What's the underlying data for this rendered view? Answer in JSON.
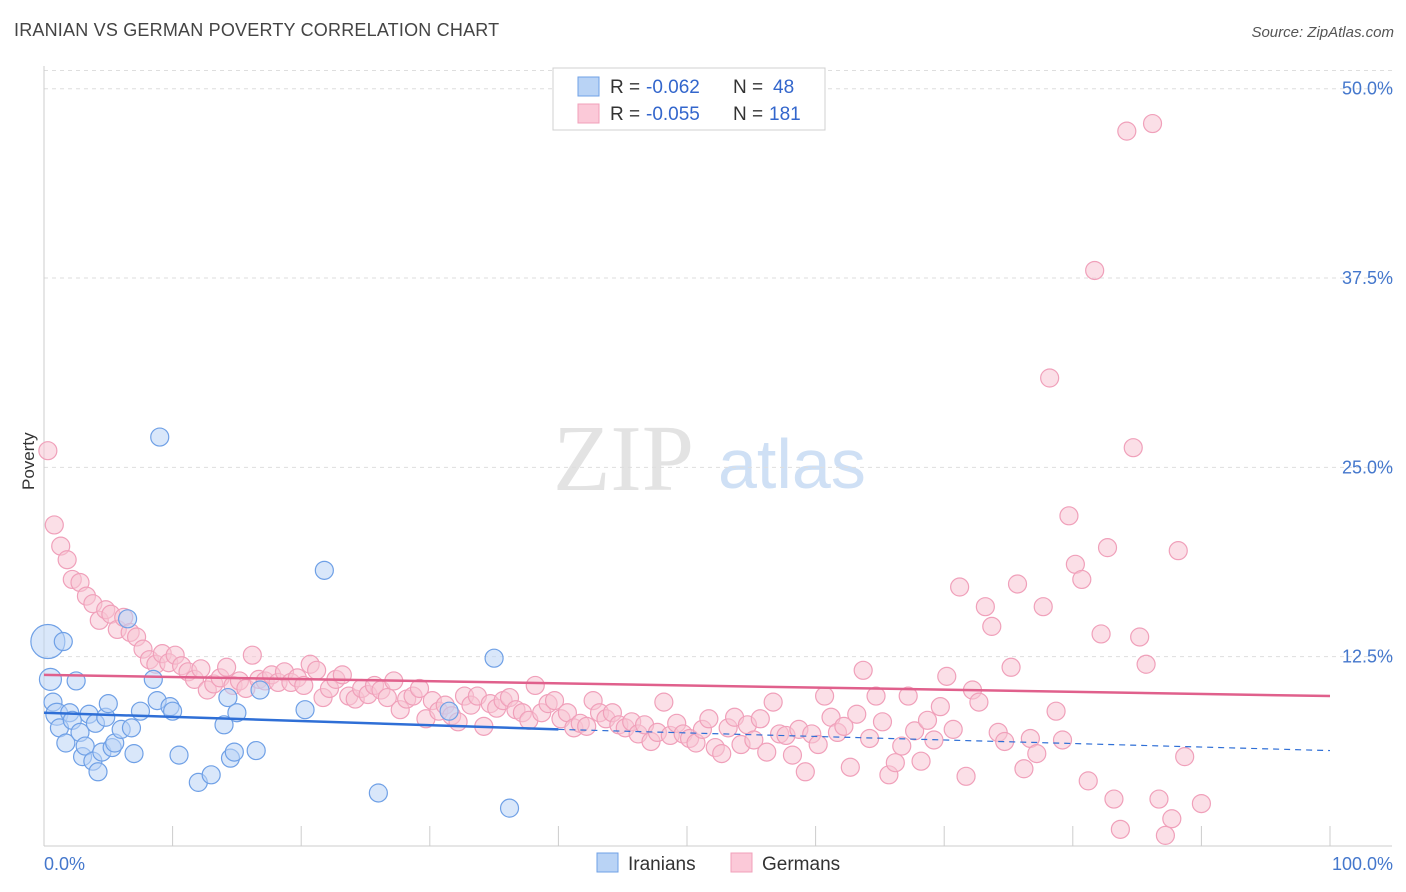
{
  "title": "IRANIAN VS GERMAN POVERTY CORRELATION CHART",
  "source": "Source: ZipAtlas.com",
  "watermark": {
    "zip": "ZIP",
    "atlas": "atlas"
  },
  "legend": {
    "rows": [
      {
        "r_label": "R =",
        "r_value": "-0.062",
        "n_label": "N =",
        "n_value": "48",
        "color": "#90b8ee"
      },
      {
        "r_label": "R =",
        "r_value": "-0.055",
        "n_label": "N =",
        "n_value": "181",
        "color": "#f4a6bf"
      }
    ]
  },
  "bottom_legend": [
    "Iranians",
    "Germans"
  ],
  "chart_data": {
    "type": "scatter",
    "xlabel": "",
    "ylabel": "Poverty",
    "xlim": [
      0,
      100
    ],
    "ylim": [
      0,
      51.5
    ],
    "x_tick_labels": [
      "0.0%",
      "100.0%"
    ],
    "y_ticks": [
      12.5,
      25.0,
      37.5,
      50.0
    ],
    "y_tick_labels": [
      "12.5%",
      "25.0%",
      "37.5%",
      "50.0%"
    ],
    "grid": "horizontal dashed",
    "legend_position": "top-center",
    "series": [
      {
        "name": "Iranians",
        "color": "#6fa0e6",
        "trend": {
          "x0": 0,
          "y0": 8.8,
          "x1": 40,
          "y1": 7.7,
          "dash_to_x": 100,
          "dash_to_y": 6.3,
          "color": "#2f6fd6"
        },
        "points": [
          [
            0.3,
            13.5
          ],
          [
            0.5,
            11.0
          ],
          [
            0.7,
            9.5
          ],
          [
            1.0,
            8.7
          ],
          [
            1.2,
            7.8
          ],
          [
            1.5,
            13.5
          ],
          [
            1.7,
            6.8
          ],
          [
            2.0,
            8.8
          ],
          [
            2.2,
            8.3
          ],
          [
            2.5,
            10.9
          ],
          [
            2.8,
            7.5
          ],
          [
            3.0,
            5.9
          ],
          [
            3.2,
            6.6
          ],
          [
            3.5,
            8.7
          ],
          [
            3.8,
            5.6
          ],
          [
            4.0,
            8.1
          ],
          [
            4.2,
            4.9
          ],
          [
            4.5,
            6.2
          ],
          [
            4.8,
            8.5
          ],
          [
            5.0,
            9.4
          ],
          [
            5.3,
            6.5
          ],
          [
            5.5,
            6.8
          ],
          [
            6.0,
            7.7
          ],
          [
            6.5,
            15.0
          ],
          [
            6.8,
            7.8
          ],
          [
            7.0,
            6.1
          ],
          [
            7.5,
            8.9
          ],
          [
            8.5,
            11.0
          ],
          [
            8.8,
            9.6
          ],
          [
            9.0,
            27.0
          ],
          [
            9.8,
            9.2
          ],
          [
            10.0,
            8.9
          ],
          [
            10.5,
            6.0
          ],
          [
            12.0,
            4.2
          ],
          [
            13.0,
            4.7
          ],
          [
            14.0,
            8.0
          ],
          [
            14.3,
            9.8
          ],
          [
            14.5,
            5.8
          ],
          [
            14.8,
            6.2
          ],
          [
            15.0,
            8.8
          ],
          [
            16.5,
            6.3
          ],
          [
            16.8,
            10.3
          ],
          [
            20.3,
            9.0
          ],
          [
            21.8,
            18.2
          ],
          [
            26.0,
            3.5
          ],
          [
            31.5,
            8.9
          ],
          [
            35.0,
            12.4
          ],
          [
            36.2,
            2.5
          ]
        ]
      },
      {
        "name": "Germans",
        "color": "#f0a0ba",
        "trend": {
          "x0": 0,
          "y0": 11.3,
          "x1": 100,
          "y1": 9.9,
          "color": "#e0608c"
        },
        "points": [
          [
            0.3,
            26.1
          ],
          [
            0.8,
            21.2
          ],
          [
            1.3,
            19.8
          ],
          [
            1.8,
            18.9
          ],
          [
            2.2,
            17.6
          ],
          [
            2.8,
            17.4
          ],
          [
            3.3,
            16.5
          ],
          [
            3.8,
            16.0
          ],
          [
            4.3,
            14.9
          ],
          [
            4.8,
            15.6
          ],
          [
            5.2,
            15.3
          ],
          [
            5.7,
            14.3
          ],
          [
            6.2,
            15.1
          ],
          [
            6.7,
            14.1
          ],
          [
            7.2,
            13.8
          ],
          [
            7.7,
            13.0
          ],
          [
            8.2,
            12.3
          ],
          [
            8.7,
            12.0
          ],
          [
            9.2,
            12.7
          ],
          [
            9.7,
            12.1
          ],
          [
            10.2,
            12.6
          ],
          [
            10.7,
            11.9
          ],
          [
            11.2,
            11.5
          ],
          [
            11.7,
            11.0
          ],
          [
            12.2,
            11.7
          ],
          [
            12.7,
            10.3
          ],
          [
            13.2,
            10.7
          ],
          [
            13.7,
            11.1
          ],
          [
            14.2,
            11.8
          ],
          [
            14.7,
            10.6
          ],
          [
            15.2,
            10.9
          ],
          [
            15.7,
            10.4
          ],
          [
            16.2,
            12.6
          ],
          [
            16.7,
            11.0
          ],
          [
            17.2,
            10.9
          ],
          [
            17.7,
            11.3
          ],
          [
            18.2,
            10.8
          ],
          [
            18.7,
            11.5
          ],
          [
            19.2,
            10.8
          ],
          [
            19.7,
            11.1
          ],
          [
            20.2,
            10.6
          ],
          [
            20.7,
            12.0
          ],
          [
            21.2,
            11.6
          ],
          [
            21.7,
            9.8
          ],
          [
            22.2,
            10.4
          ],
          [
            22.7,
            11.0
          ],
          [
            23.2,
            11.3
          ],
          [
            23.7,
            9.9
          ],
          [
            24.2,
            9.7
          ],
          [
            24.7,
            10.4
          ],
          [
            25.2,
            10.0
          ],
          [
            25.7,
            10.6
          ],
          [
            26.2,
            10.3
          ],
          [
            26.7,
            9.8
          ],
          [
            27.2,
            10.9
          ],
          [
            27.7,
            9.0
          ],
          [
            28.2,
            9.7
          ],
          [
            28.7,
            9.9
          ],
          [
            29.2,
            10.4
          ],
          [
            29.7,
            8.4
          ],
          [
            30.2,
            9.6
          ],
          [
            30.7,
            8.9
          ],
          [
            31.2,
            9.3
          ],
          [
            31.7,
            8.6
          ],
          [
            32.2,
            8.2
          ],
          [
            32.7,
            9.9
          ],
          [
            33.2,
            9.3
          ],
          [
            33.7,
            9.9
          ],
          [
            34.2,
            7.9
          ],
          [
            34.7,
            9.4
          ],
          [
            35.2,
            9.1
          ],
          [
            35.7,
            9.6
          ],
          [
            36.2,
            9.8
          ],
          [
            36.7,
            9.0
          ],
          [
            37.2,
            8.8
          ],
          [
            37.7,
            8.3
          ],
          [
            38.2,
            10.6
          ],
          [
            38.7,
            8.8
          ],
          [
            39.2,
            9.4
          ],
          [
            39.7,
            9.6
          ],
          [
            40.2,
            8.4
          ],
          [
            40.7,
            8.8
          ],
          [
            41.2,
            7.8
          ],
          [
            41.7,
            8.1
          ],
          [
            42.2,
            7.9
          ],
          [
            42.7,
            9.6
          ],
          [
            43.2,
            8.8
          ],
          [
            43.7,
            8.4
          ],
          [
            44.2,
            8.8
          ],
          [
            44.7,
            8.0
          ],
          [
            45.2,
            7.8
          ],
          [
            45.7,
            8.2
          ],
          [
            46.2,
            7.4
          ],
          [
            46.7,
            8.0
          ],
          [
            47.2,
            6.9
          ],
          [
            47.7,
            7.5
          ],
          [
            48.2,
            9.5
          ],
          [
            48.7,
            7.3
          ],
          [
            49.2,
            8.1
          ],
          [
            49.7,
            7.4
          ],
          [
            50.2,
            7.1
          ],
          [
            50.7,
            6.8
          ],
          [
            51.2,
            7.7
          ],
          [
            51.7,
            8.4
          ],
          [
            52.2,
            6.5
          ],
          [
            52.7,
            6.1
          ],
          [
            53.2,
            7.8
          ],
          [
            53.7,
            8.5
          ],
          [
            54.2,
            6.7
          ],
          [
            54.7,
            8.0
          ],
          [
            55.2,
            7.0
          ],
          [
            55.7,
            8.4
          ],
          [
            56.2,
            6.2
          ],
          [
            56.7,
            9.5
          ],
          [
            57.2,
            7.4
          ],
          [
            57.7,
            7.3
          ],
          [
            58.2,
            6.0
          ],
          [
            58.7,
            7.7
          ],
          [
            59.2,
            4.9
          ],
          [
            59.7,
            7.4
          ],
          [
            60.2,
            6.7
          ],
          [
            60.7,
            9.9
          ],
          [
            61.2,
            8.5
          ],
          [
            61.7,
            7.5
          ],
          [
            62.2,
            7.9
          ],
          [
            62.7,
            5.2
          ],
          [
            63.2,
            8.7
          ],
          [
            63.7,
            11.6
          ],
          [
            64.2,
            7.1
          ],
          [
            64.7,
            9.9
          ],
          [
            65.2,
            8.2
          ],
          [
            65.7,
            4.7
          ],
          [
            66.2,
            5.5
          ],
          [
            66.7,
            6.6
          ],
          [
            67.2,
            9.9
          ],
          [
            67.7,
            7.6
          ],
          [
            68.2,
            5.6
          ],
          [
            68.7,
            8.3
          ],
          [
            69.2,
            7.0
          ],
          [
            69.7,
            9.2
          ],
          [
            70.2,
            11.2
          ],
          [
            70.7,
            7.7
          ],
          [
            71.2,
            17.1
          ],
          [
            71.7,
            4.6
          ],
          [
            72.2,
            10.3
          ],
          [
            72.7,
            9.5
          ],
          [
            73.2,
            15.8
          ],
          [
            73.7,
            14.5
          ],
          [
            74.2,
            7.5
          ],
          [
            74.7,
            6.9
          ],
          [
            75.2,
            11.8
          ],
          [
            75.7,
            17.3
          ],
          [
            76.2,
            5.1
          ],
          [
            76.7,
            7.1
          ],
          [
            77.2,
            6.1
          ],
          [
            77.7,
            15.8
          ],
          [
            78.2,
            30.9
          ],
          [
            78.7,
            8.9
          ],
          [
            79.2,
            7.0
          ],
          [
            79.7,
            21.8
          ],
          [
            80.2,
            18.6
          ],
          [
            80.7,
            17.6
          ],
          [
            81.2,
            4.3
          ],
          [
            81.7,
            38.0
          ],
          [
            82.2,
            14.0
          ],
          [
            82.7,
            19.7
          ],
          [
            83.2,
            3.1
          ],
          [
            83.7,
            1.1
          ],
          [
            84.2,
            47.2
          ],
          [
            84.7,
            26.3
          ],
          [
            85.2,
            13.8
          ],
          [
            85.7,
            12.0
          ],
          [
            86.2,
            47.7
          ],
          [
            86.7,
            3.1
          ],
          [
            87.2,
            0.7
          ],
          [
            87.7,
            1.8
          ],
          [
            88.2,
            19.5
          ],
          [
            88.7,
            5.9
          ],
          [
            90.0,
            2.8
          ]
        ]
      }
    ]
  }
}
